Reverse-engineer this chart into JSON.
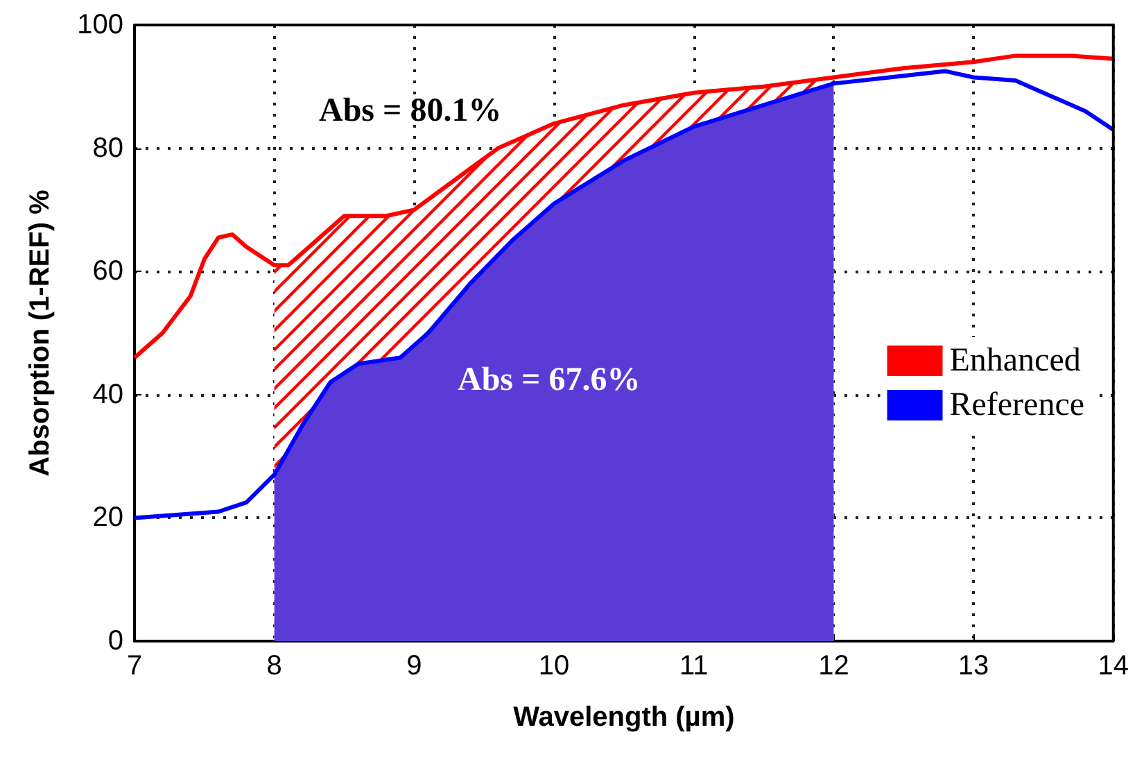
{
  "chart_data": {
    "type": "line",
    "xlabel": "Wavelength (µm)",
    "ylabel": "Absorption (1-REF) %",
    "xlim": [
      7,
      14
    ],
    "xticks": [
      7,
      8,
      9,
      10,
      11,
      12,
      13,
      14
    ],
    "ylim": [
      0,
      100
    ],
    "yticks": [
      0,
      20,
      40,
      60,
      80,
      100
    ],
    "grid": true,
    "legend": "right",
    "line_style": "solid",
    "marker": "none",
    "series": [
      {
        "name": "Enhanced",
        "color": "#ff0000",
        "x": [
          7.0,
          7.2,
          7.4,
          7.5,
          7.6,
          7.7,
          7.8,
          8.0,
          8.1,
          8.3,
          8.5,
          8.8,
          9.0,
          9.3,
          9.6,
          10.0,
          10.5,
          11.0,
          11.5,
          12.0,
          12.5,
          13.0,
          13.3,
          13.7,
          14.0
        ],
        "values": [
          46,
          50,
          56,
          62,
          65.5,
          66,
          64,
          61,
          61,
          65,
          69,
          69,
          70,
          75,
          80,
          84,
          87,
          89,
          90,
          91.5,
          93,
          94,
          95,
          95,
          94.5
        ]
      },
      {
        "name": "Reference",
        "color": "#0000ff",
        "x": [
          7.0,
          7.3,
          7.6,
          7.8,
          8.0,
          8.2,
          8.4,
          8.6,
          8.9,
          9.1,
          9.4,
          9.7,
          10.0,
          10.5,
          11.0,
          11.5,
          12.0,
          12.4,
          12.8,
          13.0,
          13.3,
          13.5,
          13.8,
          14.0
        ],
        "values": [
          20,
          20.5,
          21,
          22.5,
          27,
          35,
          42,
          45,
          46,
          50,
          58,
          65,
          71,
          78,
          83.5,
          87,
          90.5,
          91.5,
          92.5,
          91.5,
          91,
          89,
          86,
          83
        ]
      },
      {
        "type": "area",
        "color": "#ff0000",
        "x": [
          8.0,
          8.1,
          8.3,
          8.5,
          8.8,
          9.0,
          9.3,
          9.6,
          10.0,
          10.5,
          11.0,
          11.5,
          12.0
        ],
        "values": [
          61,
          61,
          65,
          69,
          69,
          70,
          75,
          80,
          84,
          87,
          89,
          90,
          91.5
        ]
      },
      {
        "type": "area",
        "color": "#5b3bd6",
        "x": [
          8.0,
          8.2,
          8.4,
          8.6,
          8.9,
          9.1,
          9.4,
          9.7,
          10.0,
          10.5,
          11.0,
          11.5,
          12.0
        ],
        "values": [
          27,
          35,
          42,
          45,
          46,
          50,
          58,
          65,
          71,
          78,
          83.5,
          87,
          90.5
        ]
      }
    ],
    "annotations": [
      "Abs = 80.1%",
      "Abs = 67.6%"
    ]
  }
}
